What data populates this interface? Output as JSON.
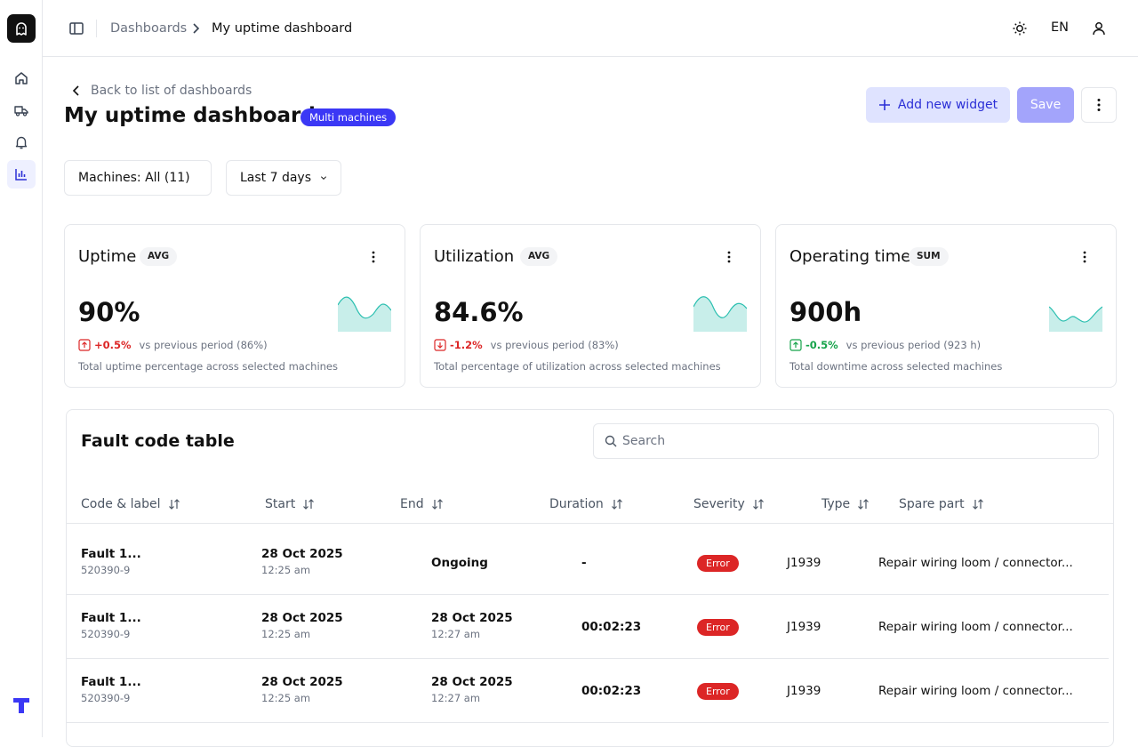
{
  "topbar": {
    "breadcrumb_parent": "Dashboards",
    "breadcrumb_current": "My uptime dashboard",
    "language": "EN"
  },
  "header": {
    "back_label": "Back to list of dashboards",
    "title": "My uptime dashboard",
    "badge": "Multi machines",
    "add_widget_label": "Add new widget",
    "save_label": "Save"
  },
  "filters": {
    "machines": "Machines: All (11)",
    "period": "Last 7 days"
  },
  "cards": [
    {
      "title": "Uptime",
      "badge": "AVG",
      "value": "90%",
      "delta": "+0.5%",
      "delta_direction": "up",
      "delta_color": "#dc2626",
      "prev": "vs previous period (86%)",
      "desc": "Total uptime percentage across selected machines"
    },
    {
      "title": "Utilization",
      "badge": "AVG",
      "value": "84.6%",
      "delta": "-1.2%",
      "delta_direction": "down",
      "delta_color": "#dc2626",
      "prev": "vs previous period (83%)",
      "desc": "Total percentage of utilization across selected machines"
    },
    {
      "title": "Operating time",
      "badge": "SUM",
      "value": "900h",
      "delta": "-0.5%",
      "delta_direction": "up",
      "delta_color": "#16a34a",
      "prev": "vs previous period (923 h)",
      "desc": "Total downtime across selected machines"
    }
  ],
  "fault_table": {
    "title": "Fault code table",
    "search_placeholder": "Search",
    "columns": [
      "Code & label",
      "Start",
      "End",
      "Duration",
      "Severity",
      "Type",
      "Spare part"
    ],
    "rows": [
      {
        "code": "Fault 1...",
        "code_sub": "520390-9",
        "start_date": "28 Oct 2025",
        "start_time": "12:25 am",
        "end_date": "Ongoing",
        "end_time": "",
        "duration": "-",
        "severity": "Error",
        "type": "J1939",
        "spare_part": "Repair wiring loom / connector..."
      },
      {
        "code": "Fault 1...",
        "code_sub": "520390-9",
        "start_date": "28 Oct 2025",
        "start_time": "12:25 am",
        "end_date": "28 Oct 2025",
        "end_time": "12:27 am",
        "duration": "00:02:23",
        "severity": "Error",
        "type": "J1939",
        "spare_part": "Repair wiring loom / connector..."
      },
      {
        "code": "Fault 1...",
        "code_sub": "520390-9",
        "start_date": "28 Oct 2025",
        "start_time": "12:25 am",
        "end_date": "28 Oct 2025",
        "end_time": "12:27 am",
        "duration": "00:02:23",
        "severity": "Error",
        "type": "J1939",
        "spare_part": "Repair wiring loom / connector..."
      }
    ]
  },
  "colors": {
    "accent": "#3b38f5",
    "add_widget_bg": "#dfe3ff",
    "save_bg": "#a3a4fb",
    "sparkline": "#2bbfb0",
    "error": "#dc2626"
  }
}
